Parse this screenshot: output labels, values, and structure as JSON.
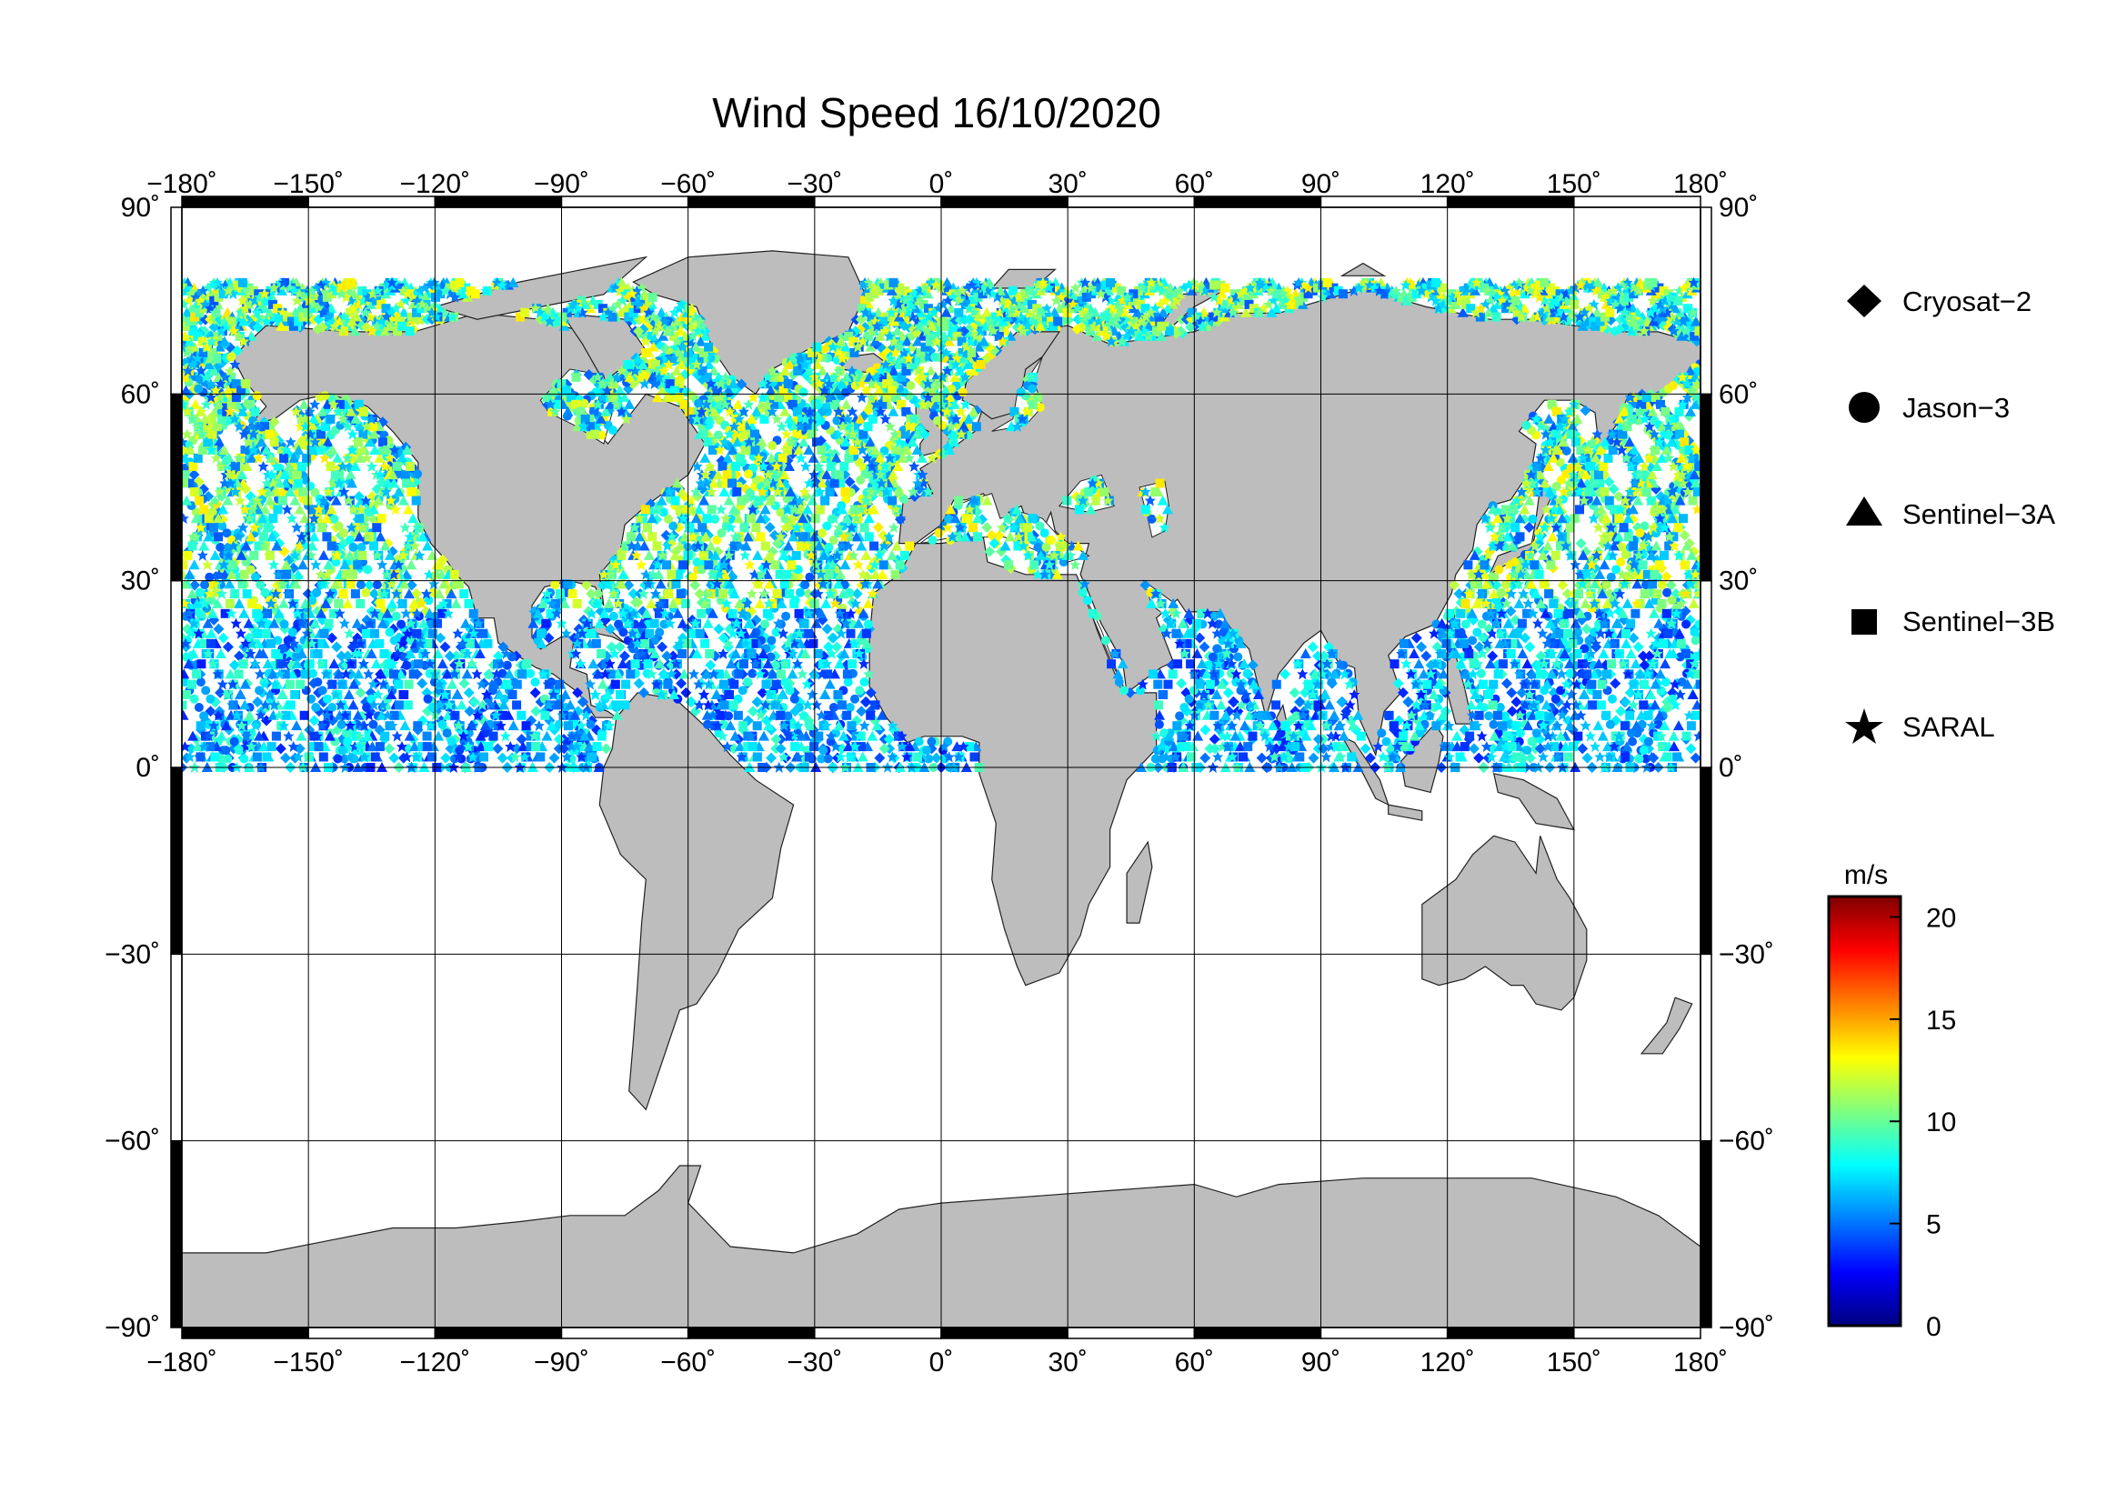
{
  "title": "Wind Speed 16/10/2020",
  "map": {
    "lon_ticks": [
      -180,
      -150,
      -120,
      -90,
      -60,
      -30,
      0,
      30,
      60,
      90,
      120,
      150,
      180
    ],
    "lat_ticks": [
      -90,
      -60,
      -30,
      0,
      30,
      60,
      90
    ],
    "lon_labels": [
      "−180˚",
      "−150˚",
      "−120˚",
      "−90˚",
      "−60˚",
      "−30˚",
      "0˚",
      "30˚",
      "60˚",
      "90˚",
      "120˚",
      "150˚",
      "180˚"
    ],
    "lat_labels": [
      "−90˚",
      "−60˚",
      "−30˚",
      "0˚",
      "30˚",
      "60˚",
      "90˚"
    ],
    "land_color": "#bdbdbd",
    "grid": true
  },
  "legend": {
    "items": [
      {
        "label": "Cryosat−2",
        "marker": "diamond"
      },
      {
        "label": "Jason−3",
        "marker": "circle"
      },
      {
        "label": "Sentinel−3A",
        "marker": "triangle"
      },
      {
        "label": "Sentinel−3B",
        "marker": "square"
      },
      {
        "label": "SARAL",
        "marker": "star"
      }
    ]
  },
  "colorbar": {
    "unit": "m/s",
    "min": 0,
    "max": 21,
    "ticks": [
      0,
      5,
      10,
      15,
      20
    ],
    "tick_labels": [
      "0",
      "5",
      "10",
      "15",
      "20"
    ],
    "colormap": "jet"
  }
}
